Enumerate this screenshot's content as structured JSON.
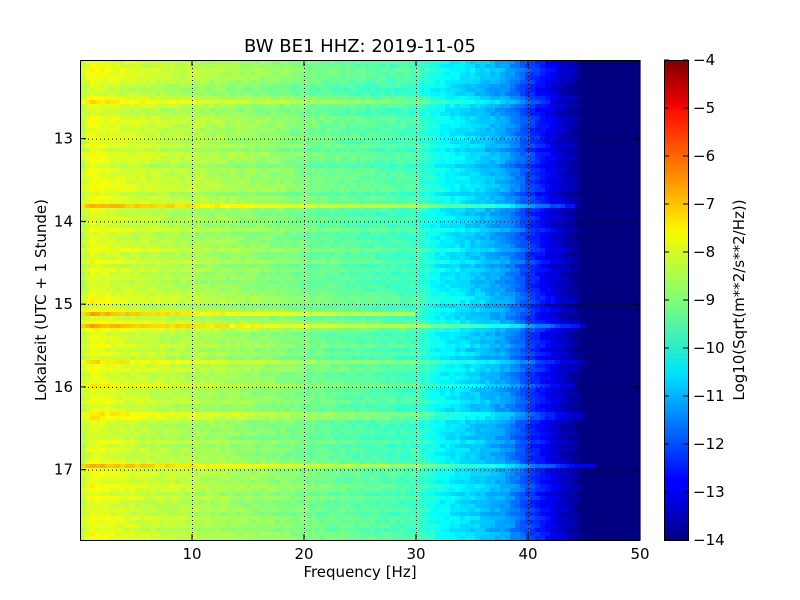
{
  "chart_data": {
    "type": "heatmap",
    "title": "BW BE1 HHZ: 2019-11-05",
    "xlabel": "Frequency [Hz]",
    "ylabel": "Lokalzeit (UTC + 1 Stunde)",
    "colorbar_label": "Log10(Sqrt(m**2/s**2/Hz))",
    "xlim": [
      0,
      50
    ],
    "ylim": [
      12.05,
      17.85
    ],
    "y_inverted": true,
    "x_ticks": [
      10,
      20,
      30,
      40,
      50
    ],
    "x_tick_labels": [
      "10",
      "20",
      "30",
      "40",
      "50"
    ],
    "y_ticks": [
      13,
      14,
      15,
      16,
      17
    ],
    "y_tick_labels": [
      "13",
      "14",
      "15",
      "16",
      "17"
    ],
    "grid": true,
    "colormap": "jet",
    "color_range": [
      -14,
      -4
    ],
    "colorbar_ticks": [
      -4,
      -5,
      -6,
      -7,
      -8,
      -9,
      -10,
      -11,
      -12,
      -13,
      -14
    ],
    "colorbar_tick_labels": [
      "−4",
      "−5",
      "−6",
      "−7",
      "−8",
      "−9",
      "−10",
      "−11",
      "−12",
      "−13",
      "−14"
    ],
    "frequency_profile": {
      "frequency_hz": [
        0,
        1,
        3,
        6,
        10,
        14,
        18,
        22,
        26,
        30,
        31,
        32,
        34,
        36,
        38,
        39,
        40,
        41,
        42,
        43,
        44,
        44.5,
        45,
        47,
        50
      ],
      "log_psd": [
        -8.5,
        -7.9,
        -8.1,
        -8.3,
        -8.5,
        -8.7,
        -8.9,
        -9.2,
        -9.4,
        -9.6,
        -9.9,
        -10.2,
        -10.5,
        -10.8,
        -11.2,
        -11.6,
        -12.1,
        -12.5,
        -12.9,
        -13.3,
        -13.6,
        -13.8,
        -14,
        -14,
        -14
      ]
    },
    "horizontal_bands": [
      {
        "time_h": 12.55,
        "max_freq_hz": 42,
        "boost": 0.9
      },
      {
        "time_h": 13.8,
        "max_freq_hz": 44,
        "boost": 1.4
      },
      {
        "time_h": 15.12,
        "max_freq_hz": 30,
        "boost": 1.1
      },
      {
        "time_h": 15.25,
        "max_freq_hz": 45,
        "boost": 1.5
      },
      {
        "time_h": 15.72,
        "max_freq_hz": 45,
        "boost": 1.4
      },
      {
        "time_h": 15.97,
        "max_freq_hz": 44,
        "boost": 1.3
      },
      {
        "time_h": 16.35,
        "max_freq_hz": 45,
        "boost": 1.4
      },
      {
        "time_h": 16.97,
        "max_freq_hz": 46,
        "boost": 1.9
      }
    ]
  }
}
